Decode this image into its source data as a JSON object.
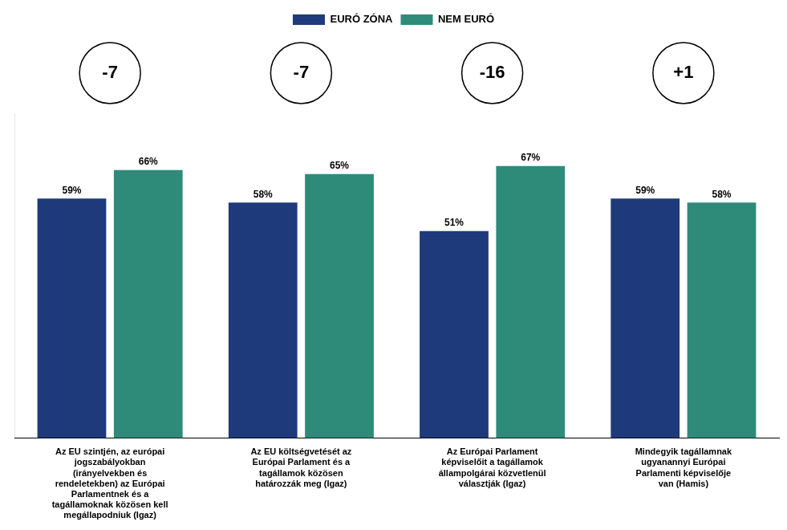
{
  "chart_data": {
    "type": "bar",
    "categories": [
      "Az EU szintjén, az európai\njogszabályokban\n(irányelvekben és\nrendeletekben) az Európai\nParlamentnek és a\ntagállamoknak közösen kell\nmegállapodniuk (Igaz)",
      "Az EU költségvetését az\nEurópai Parlament és a\ntagállamok közösen\nhatározzák meg (Igaz)",
      "Az Európai Parlament\nképviselőit a tagállamok\nállampolgárai közvetlenül\nválasztják (Igaz)",
      "Mindegyik tagállamnak\nugyanannyi Európai\nParlamenti képviselője\nvan (Hamis)"
    ],
    "series": [
      {
        "name": "EURÓ ZÓNA",
        "color": "#1F3A7A",
        "values": [
          59,
          58,
          51,
          59
        ],
        "value_labels": [
          "59%",
          "58%",
          "51%",
          "59%"
        ]
      },
      {
        "name": "NEM EURÓ",
        "color": "#2E8B7A",
        "values": [
          66,
          65,
          67,
          58
        ],
        "value_labels": [
          "66%",
          "65%",
          "67%",
          "58%"
        ]
      }
    ],
    "annotations": [
      "-7",
      "-7",
      "-16",
      "+1"
    ],
    "ylim": [
      0,
      80
    ],
    "data_labels": true,
    "tick_labels": "x",
    "grid": false,
    "legend": "top"
  }
}
